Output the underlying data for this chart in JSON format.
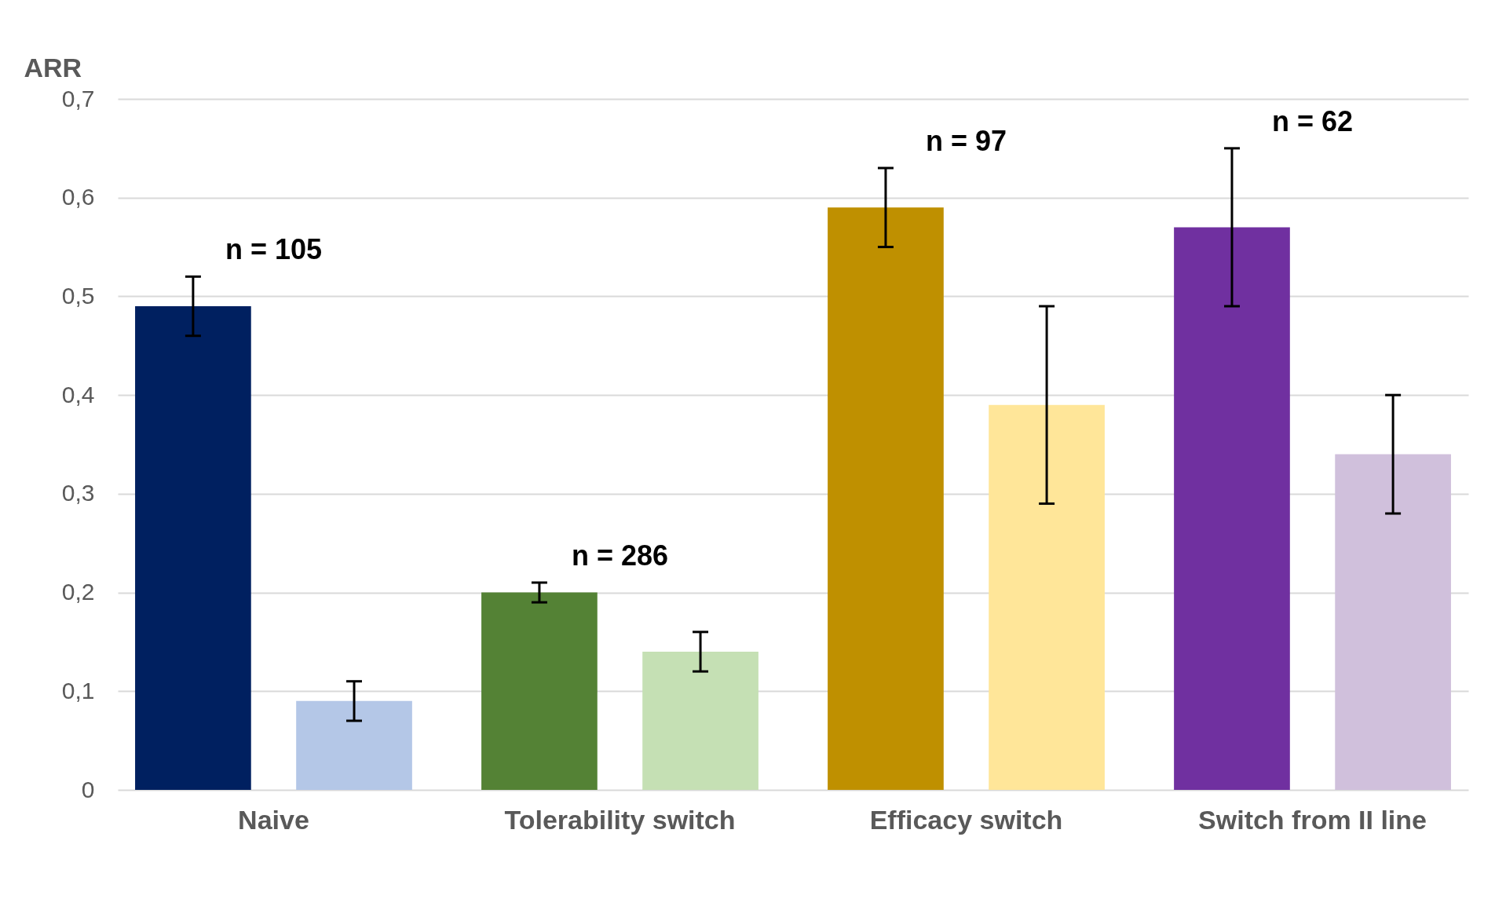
{
  "chart_data": {
    "type": "bar",
    "ylabel": "ARR",
    "categories": [
      "Naive",
      "Tolerability switch",
      "Efficacy switch",
      "Switch from II line"
    ],
    "series": [
      {
        "colors": [
          "#002060",
          "#548235",
          "#bf9000",
          "#7030a0"
        ],
        "values": [
          0.49,
          0.2,
          0.59,
          0.57
        ],
        "errors": [
          [
            0.46,
            0.52
          ],
          [
            0.19,
            0.21
          ],
          [
            0.55,
            0.63
          ],
          [
            0.49,
            0.65
          ]
        ]
      },
      {
        "colors": [
          "#b4c7e7",
          "#c5e0b4",
          "#ffe699",
          "#d0c0dc"
        ],
        "values": [
          0.09,
          0.14,
          0.39,
          0.34
        ],
        "errors": [
          [
            0.07,
            0.11
          ],
          [
            0.12,
            0.16
          ],
          [
            0.29,
            0.49
          ],
          [
            0.28,
            0.4
          ]
        ]
      }
    ],
    "ylim": [
      0,
      0.7
    ],
    "yticks": [
      0,
      {
        "value": 0.1,
        "label": "0,1"
      },
      {
        "value": 0.2,
        "label": "0,2"
      },
      {
        "value": 0.3,
        "label": "0,3"
      },
      {
        "value": 0.4,
        "label": "0,4"
      },
      {
        "value": 0.5,
        "label": "0,5"
      },
      {
        "value": 0.6,
        "label": "0,6"
      },
      {
        "value": 0.7,
        "label": "0,7"
      }
    ],
    "grid": "y",
    "annotations": [
      "n = 105",
      "n = 286",
      "n = 97",
      "n = 62"
    ]
  }
}
